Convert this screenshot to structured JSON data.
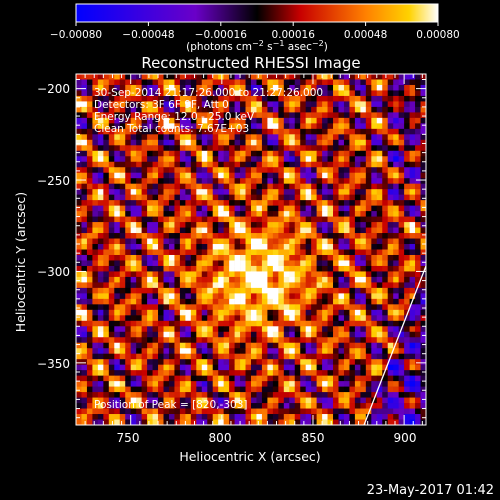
{
  "chart_data": {
    "type": "heatmap",
    "title": "Reconstructed RHESSI Image",
    "xlabel": "Heliocentric X (arcsec)",
    "ylabel": "Heliocentric Y (arcsec)",
    "xlim": [
      720,
      912
    ],
    "ylim": [
      -384,
      -192
    ],
    "x_ticks": [
      750,
      800,
      850,
      900
    ],
    "y_ticks": [
      -200,
      -250,
      -300,
      -350
    ],
    "x_tick_labels": [
      "750",
      "800",
      "850",
      "900"
    ],
    "y_tick_labels": [
      "−200",
      "−250",
      "−300",
      "−350"
    ],
    "colorbar": {
      "range": [
        -0.0008,
        0.0008
      ],
      "ticks": [
        -0.0008,
        -0.00048,
        -0.00016,
        0.00016,
        0.00048,
        0.0008
      ],
      "tick_labels": [
        "−0.00080",
        "−0.00048",
        "−0.00016",
        "0.00016",
        "0.00048",
        "0.00080"
      ],
      "units_text": "(photons cm",
      "units_exp1": "−2",
      "units_mid": " s",
      "units_exp2": "−1",
      "units_end": " asec",
      "units_exp3": "−2",
      "units_close": ")"
    },
    "annotations": [
      "30-Sep-2014 21:17:26.000 to 21:27:26.000",
      "Detectors: 3F 6F 9F, Att 0",
      "Energy Range: 12.0 - 25.0 keV",
      "Clean     Total counts: 7.67E+03"
    ],
    "peak_label": "Position of Peak = [820,-303]",
    "peak": [
      820,
      -303
    ],
    "limb_line": [
      [
        878,
        -384
      ],
      [
        912,
        -297
      ]
    ]
  },
  "footer": {
    "timestamp": "23-May-2017 01:42"
  }
}
